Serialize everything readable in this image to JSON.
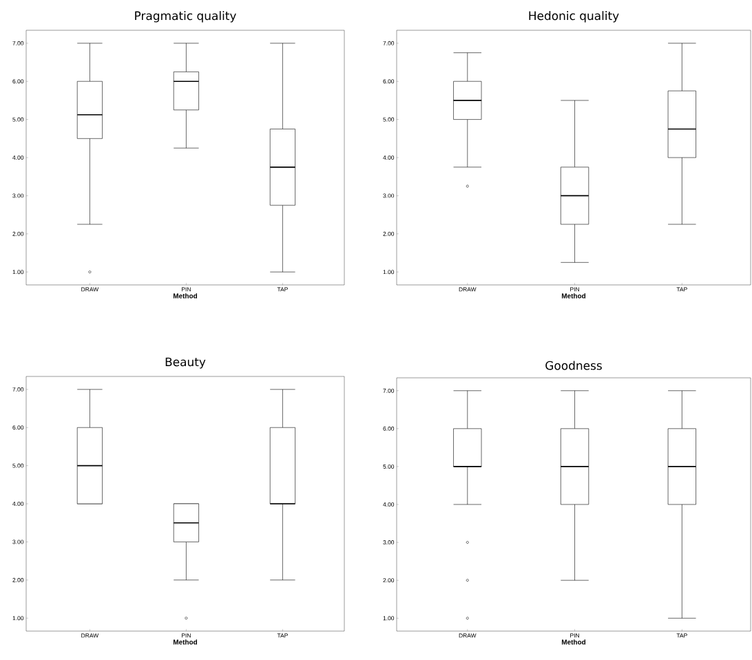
{
  "chart_data": [
    {
      "type": "box",
      "title": "Pragmatic quality",
      "xlabel": "Method",
      "categories": [
        "DRAW",
        "PIN",
        "TAP"
      ],
      "ylim": [
        0.66,
        7.34
      ],
      "yticks": [
        {
          "value": 1,
          "label": "1.00"
        },
        {
          "value": 2,
          "label": "2.00"
        },
        {
          "value": 3,
          "label": "3.00"
        },
        {
          "value": 4,
          "label": "4.00"
        },
        {
          "value": 5,
          "label": "5.00"
        },
        {
          "value": 6,
          "label": "6.00"
        },
        {
          "value": 7,
          "label": "7.00"
        }
      ],
      "grid": false,
      "boxes": [
        {
          "low": 2.25,
          "q1": 4.5,
          "median": 5.125,
          "q3": 6,
          "high": 7,
          "outliers": [
            1
          ]
        },
        {
          "low": 4.25,
          "q1": 5.25,
          "median": 6,
          "q3": 6.25,
          "high": 7
        },
        {
          "low": 1,
          "q1": 2.75,
          "median": 3.75,
          "q3": 4.75,
          "high": 7
        }
      ]
    },
    {
      "type": "box",
      "title": "Hedonic quality",
      "xlabel": "Method",
      "categories": [
        "DRAW",
        "PIN",
        "TAP"
      ],
      "ylim": [
        0.66,
        7.34
      ],
      "yticks": [
        {
          "value": 1,
          "label": "1.00"
        },
        {
          "value": 2,
          "label": "2.00"
        },
        {
          "value": 3,
          "label": "3.00"
        },
        {
          "value": 4,
          "label": "4.00"
        },
        {
          "value": 5,
          "label": "5.00"
        },
        {
          "value": 6,
          "label": "6.00"
        },
        {
          "value": 7,
          "label": "7.00"
        }
      ],
      "grid": false,
      "boxes": [
        {
          "low": 3.75,
          "q1": 5,
          "median": 5.5,
          "q3": 6,
          "high": 6.75,
          "outliers": [
            3.25
          ]
        },
        {
          "low": 1.25,
          "q1": 2.25,
          "median": 3,
          "q3": 3.75,
          "high": 5.5
        },
        {
          "low": 2.25,
          "q1": 4,
          "median": 4.75,
          "q3": 5.75,
          "high": 7
        }
      ]
    },
    {
      "type": "box",
      "title": "Beauty",
      "xlabel": "Method",
      "categories": [
        "DRAW",
        "PIN",
        "TAP"
      ],
      "ylim": [
        0.66,
        7.34
      ],
      "yticks": [
        {
          "value": 1,
          "label": "1.00"
        },
        {
          "value": 2,
          "label": "2.00"
        },
        {
          "value": 3,
          "label": "3.00"
        },
        {
          "value": 4,
          "label": "4.00"
        },
        {
          "value": 5,
          "label": "5.00"
        },
        {
          "value": 6,
          "label": "6.00"
        },
        {
          "value": 7,
          "label": "7.00"
        }
      ],
      "grid": false,
      "boxes": [
        {
          "low": 4,
          "q1": 4,
          "median": 5,
          "q3": 6,
          "high": 7
        },
        {
          "low": 2,
          "q1": 3,
          "median": 3.5,
          "q3": 4,
          "high": 4,
          "outliers": [
            1
          ]
        },
        {
          "low": 2,
          "q1": 4,
          "median": 4,
          "q3": 6,
          "high": 7
        }
      ]
    },
    {
      "type": "box",
      "title": "Goodness",
      "xlabel": "Method",
      "categories": [
        "DRAW",
        "PIN",
        "TAP"
      ],
      "ylim": [
        0.66,
        7.34
      ],
      "yticks": [
        {
          "value": 1,
          "label": "1.00"
        },
        {
          "value": 2,
          "label": "2.00"
        },
        {
          "value": 3,
          "label": "3.00"
        },
        {
          "value": 4,
          "label": "4.00"
        },
        {
          "value": 5,
          "label": "5.00"
        },
        {
          "value": 6,
          "label": "6.00"
        },
        {
          "value": 7,
          "label": "7.00"
        }
      ],
      "grid": false,
      "boxes": [
        {
          "low": 4,
          "q1": 5,
          "median": 5,
          "q3": 6,
          "high": 7,
          "outliers": [
            3,
            2,
            1
          ]
        },
        {
          "low": 2,
          "q1": 4,
          "median": 5,
          "q3": 6,
          "high": 7
        },
        {
          "low": 1,
          "q1": 4,
          "median": 5,
          "q3": 6,
          "high": 7
        }
      ]
    }
  ]
}
